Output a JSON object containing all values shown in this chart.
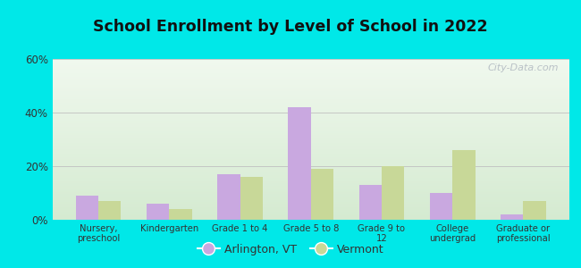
{
  "title": "School Enrollment by Level of School in 2022",
  "categories": [
    "Nursery,\npreschool",
    "Kindergarten",
    "Grade 1 to 4",
    "Grade 5 to 8",
    "Grade 9 to\n12",
    "College\nundergrad",
    "Graduate or\nprofessional"
  ],
  "arlington_values": [
    9,
    6,
    17,
    42,
    13,
    10,
    2
  ],
  "vermont_values": [
    7,
    4,
    16,
    19,
    20,
    26,
    7
  ],
  "arlington_color": "#c9a8e0",
  "vermont_color": "#c8d898",
  "background_color": "#00e8e8",
  "plot_bg_top": "#f0f8ee",
  "plot_bg_bottom": "#d4ead0",
  "ylim": [
    0,
    60
  ],
  "yticks": [
    0,
    20,
    40,
    60
  ],
  "ytick_labels": [
    "0%",
    "20%",
    "40%",
    "60%"
  ],
  "legend_arlington": "Arlington, VT",
  "legend_vermont": "Vermont",
  "watermark": "City-Data.com",
  "bar_width": 0.32
}
